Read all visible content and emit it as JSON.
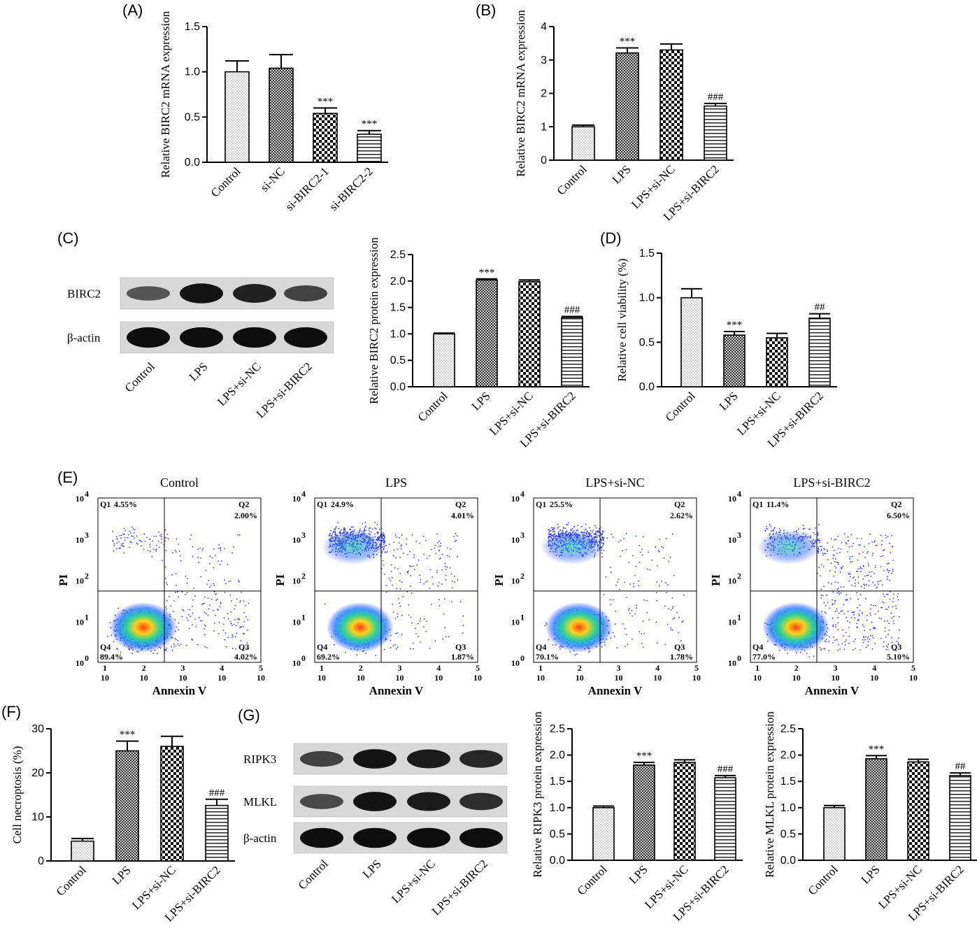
{
  "panel_labels": {
    "A": "(A)",
    "B": "(B)",
    "C": "(C)",
    "D": "(D)",
    "E": "(E)",
    "F": "(F)",
    "G": "(G)"
  },
  "colors": {
    "bar_fill": "#ffffff",
    "bar_stroke": "#000000",
    "pattern_dots": "#888888",
    "pattern_dark": "#333333",
    "flow_low": "#1a2cff",
    "flow_mid": "#2bd39a",
    "flow_high": "#ff3d1a"
  },
  "chart_data": [
    {
      "id": "A",
      "type": "bar",
      "ylabel": "Relative BIRC2 mRNA expression",
      "ylim": [
        0,
        1.5
      ],
      "yticks": [
        "0.0",
        "0.5",
        "1.0",
        "1.5"
      ],
      "categories": [
        "Control",
        "si-NC",
        "si-BIRC2-1",
        "si-BIRC2-2"
      ],
      "values": [
        1.0,
        1.04,
        0.54,
        0.31
      ],
      "errors": [
        0.12,
        0.15,
        0.06,
        0.04
      ],
      "patterns": [
        "dots",
        "fine",
        "check",
        "hlines"
      ],
      "annotations": [
        "",
        "",
        "***",
        "***"
      ]
    },
    {
      "id": "B",
      "type": "bar",
      "ylabel": "Relative BIRC2 mRNA expression",
      "ylim": [
        0,
        4
      ],
      "yticks": [
        "0",
        "1",
        "2",
        "3",
        "4"
      ],
      "categories": [
        "Control",
        "LPS",
        "LPS+si-NC",
        "LPS+si-BIRC2"
      ],
      "values": [
        1.0,
        3.21,
        3.3,
        1.62
      ],
      "errors": [
        0.05,
        0.15,
        0.18,
        0.08
      ],
      "patterns": [
        "dots",
        "fine",
        "check",
        "hlines"
      ],
      "annotations": [
        "",
        "***",
        "",
        "###"
      ]
    },
    {
      "id": "C",
      "type": "bar",
      "ylabel": "Relative BIRC2 protein expression",
      "ylim": [
        0,
        2.5
      ],
      "yticks": [
        "0.0",
        "0.5",
        "1.0",
        "1.5",
        "2.0",
        "2.5"
      ],
      "categories": [
        "Control",
        "LPS",
        "LPS+si-NC",
        "LPS+si-BIRC2"
      ],
      "values": [
        1.0,
        2.02,
        1.99,
        1.31
      ],
      "errors": [
        0.015,
        0.02,
        0.03,
        0.02
      ],
      "patterns": [
        "dots",
        "fine",
        "check",
        "hlines"
      ],
      "annotations": [
        "",
        "***",
        "",
        "###"
      ]
    },
    {
      "id": "D",
      "type": "bar",
      "ylabel": "Relative cell viability (%)",
      "ylim": [
        0,
        1.5
      ],
      "yticks": [
        "0.0",
        "0.5",
        "1.0",
        "1.5"
      ],
      "categories": [
        "Control",
        "LPS",
        "LPS+si-NC",
        "LPS+si-BIRC2"
      ],
      "values": [
        1.0,
        0.58,
        0.55,
        0.77
      ],
      "errors": [
        0.1,
        0.04,
        0.05,
        0.05
      ],
      "patterns": [
        "dots",
        "fine",
        "check",
        "hlines"
      ],
      "annotations": [
        "",
        "***",
        "",
        "##"
      ]
    },
    {
      "id": "E",
      "type": "scatter",
      "xlabel": "Annexin V",
      "ylabel": "PI",
      "plots": [
        {
          "title": "Control",
          "Q1": "4.55%",
          "Q2": "2.00%",
          "Q3": "4.02%",
          "Q4": "89.4%"
        },
        {
          "title": "LPS",
          "Q1": "24.9%",
          "Q2": "4.01%",
          "Q3": "1.87%",
          "Q4": "69.2%"
        },
        {
          "title": "LPS+si-NC",
          "Q1": "25.5%",
          "Q2": "2.62%",
          "Q3": "1.78%",
          "Q4": "70.1%"
        },
        {
          "title": "LPS+si-BIRC2",
          "Q1": "11.4%",
          "Q2": "6.50%",
          "Q3": "5.10%",
          "Q4": "77.0%"
        }
      ]
    },
    {
      "id": "F",
      "type": "bar",
      "ylabel": "Cell necroptosis (%)",
      "ylim": [
        0,
        30
      ],
      "yticks": [
        "0",
        "10",
        "20",
        "30"
      ],
      "categories": [
        "Control",
        "LPS",
        "LPS+si-NC",
        "LPS+si-BIRC2"
      ],
      "values": [
        4.5,
        25.0,
        26.0,
        12.6
      ],
      "errors": [
        0.6,
        2.2,
        2.3,
        1.4
      ],
      "patterns": [
        "dots",
        "fine",
        "check",
        "hlines"
      ],
      "annotations": [
        "",
        "***",
        "",
        "###"
      ]
    },
    {
      "id": "G1",
      "type": "bar",
      "ylabel": "Relative RIPK3 protein expression",
      "ylim": [
        0,
        2.5
      ],
      "yticks": [
        "0.0",
        "0.5",
        "1.0",
        "1.5",
        "2.0",
        "2.5"
      ],
      "categories": [
        "Control",
        "LPS",
        "LPS+si-NC",
        "LPS+si-BIRC2"
      ],
      "values": [
        1.0,
        1.81,
        1.86,
        1.57
      ],
      "errors": [
        0.03,
        0.05,
        0.05,
        0.04
      ],
      "patterns": [
        "dots",
        "fine",
        "check",
        "hlines"
      ],
      "annotations": [
        "",
        "***",
        "",
        "###"
      ]
    },
    {
      "id": "G2",
      "type": "bar",
      "ylabel": "Relative MLKL protein expression",
      "ylim": [
        0,
        2.5
      ],
      "yticks": [
        "0.0",
        "0.5",
        "1.0",
        "1.5",
        "2.0",
        "2.5"
      ],
      "categories": [
        "Control",
        "LPS",
        "LPS+si-NC",
        "LPS+si-BIRC2"
      ],
      "values": [
        1.0,
        1.93,
        1.87,
        1.61
      ],
      "errors": [
        0.04,
        0.06,
        0.05,
        0.05
      ],
      "patterns": [
        "dots",
        "fine",
        "check",
        "hlines"
      ],
      "annotations": [
        "",
        "***",
        "",
        "##"
      ]
    }
  ],
  "flow_axis": {
    "y_ticks": [
      {
        "base": "10",
        "exp": "4"
      },
      {
        "base": "10",
        "exp": "3"
      },
      {
        "base": "10",
        "exp": "2"
      },
      {
        "base": "10",
        "exp": "1"
      },
      {
        "base": "10",
        "exp": "0"
      }
    ],
    "x_ticks": [
      {
        "base": "10",
        "exp": "1"
      },
      {
        "base": "10",
        "exp": "2"
      },
      {
        "base": "10",
        "exp": "3"
      },
      {
        "base": "10",
        "exp": "4"
      },
      {
        "base": "10",
        "exp": "5"
      }
    ],
    "quadrants": {
      "q1": "Q1",
      "q2": "Q2",
      "q3": "Q3",
      "q4": "Q4"
    }
  },
  "western_c": {
    "rows": [
      "BIRC2",
      "β-actin"
    ],
    "lanes": [
      "Control",
      "LPS",
      "LPS+si-NC",
      "LPS+si-BIRC2"
    ],
    "intensities": [
      [
        0.45,
        0.95,
        0.85,
        0.6
      ],
      [
        1.0,
        1.0,
        1.0,
        1.0
      ]
    ]
  },
  "western_g": {
    "rows": [
      "RIPK3",
      "MLKL",
      "β-actin"
    ],
    "lanes": [
      "Control",
      "LPS",
      "LPS+si-NC",
      "LPS+si-BIRC2"
    ],
    "intensities": [
      [
        0.6,
        0.95,
        0.9,
        0.8
      ],
      [
        0.55,
        0.95,
        0.9,
        0.75
      ],
      [
        1.0,
        1.0,
        1.0,
        1.0
      ]
    ]
  }
}
